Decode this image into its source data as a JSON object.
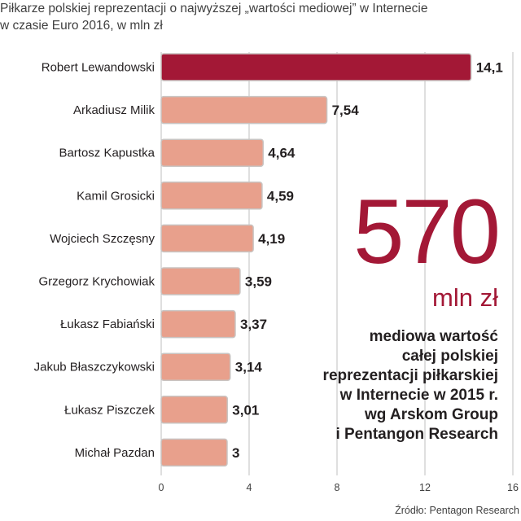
{
  "chart_data": {
    "type": "bar",
    "orientation": "horizontal",
    "title_lines": [
      "Piłkarze polskiej reprezentacji o najwyższej „wartości mediowej” w Internecie",
      "w czasie Euro 2016, w mln zł"
    ],
    "categories": [
      "Robert Lewandowski",
      "Arkadiusz Milik",
      "Bartosz Kapustka",
      "Kamil Grosicki",
      "Wojciech Szczęsny",
      "Grzegorz Krychowiak",
      "Łukasz Fabiański",
      "Jakub Błaszczykowski",
      "Łukasz Piszczek",
      "Michał Pazdan"
    ],
    "values": [
      14.1,
      7.54,
      4.64,
      4.59,
      4.19,
      3.59,
      3.37,
      3.14,
      3.01,
      3
    ],
    "value_labels": [
      "14,1",
      "7,54",
      "4,64",
      "4,59",
      "4,19",
      "3,59",
      "3,37",
      "3,14",
      "3,01",
      "3"
    ],
    "xlim": [
      0,
      16
    ],
    "x_ticks": [
      0,
      4,
      8,
      12,
      16
    ],
    "grid": true,
    "colors": {
      "highlight": "#a31836",
      "bar": "#e8a08c",
      "bar_stroke": "#c9c4c2",
      "grid": "#bfbfbf",
      "accent_text": "#a31836"
    },
    "highlight_index": 0
  },
  "callout": {
    "number": "570",
    "unit": "mln zł",
    "description_lines": [
      "mediowa wartość",
      "całej polskiej",
      "reprezentacji piłkarskiej",
      "w Internecie w 2015 r.",
      "wg Arskom Group",
      "i Pentangon Research"
    ]
  },
  "source": "Źródło: Pentagon Research"
}
